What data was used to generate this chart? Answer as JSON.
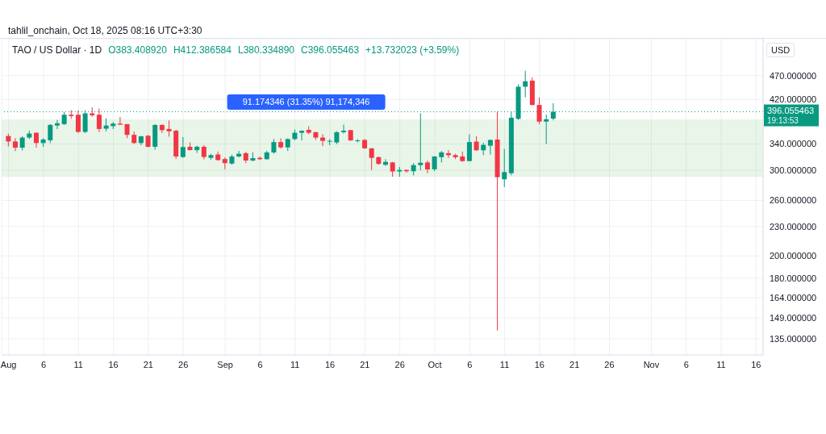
{
  "chart_data": {
    "type": "candlestick",
    "title": "TAO / US Dollar · 1D",
    "ylabel": "USD",
    "annotations": [
      "tahlil_onchain, Oct 18, 2025 08:16 UTC+3:30",
      "O383.408920",
      "H412.386584",
      "L380.334890",
      "C396.055463",
      "+13.732023 (+3.59%)",
      "19:13:53"
    ],
    "x": [
      "2025-08-01",
      "2025-08-02",
      "2025-08-03",
      "2025-08-04",
      "2025-08-05",
      "2025-08-06",
      "2025-08-07",
      "2025-08-08",
      "2025-08-09",
      "2025-08-10",
      "2025-08-11",
      "2025-08-12",
      "2025-08-13",
      "2025-08-14",
      "2025-08-15",
      "2025-08-16",
      "2025-08-17",
      "2025-08-18",
      "2025-08-19",
      "2025-08-20",
      "2025-08-21",
      "2025-08-22",
      "2025-08-23",
      "2025-08-24",
      "2025-08-25",
      "2025-08-26",
      "2025-08-27",
      "2025-08-28",
      "2025-08-29",
      "2025-08-30",
      "2025-08-31",
      "2025-09-01",
      "2025-09-02",
      "2025-09-03",
      "2025-09-04",
      "2025-09-05",
      "2025-09-06",
      "2025-09-07",
      "2025-09-08",
      "2025-09-09",
      "2025-09-10",
      "2025-09-11",
      "2025-09-12",
      "2025-09-13",
      "2025-09-14",
      "2025-09-15",
      "2025-09-16",
      "2025-09-17",
      "2025-09-18",
      "2025-09-19",
      "2025-09-20",
      "2025-09-21",
      "2025-09-22",
      "2025-09-23",
      "2025-09-24",
      "2025-09-25",
      "2025-09-26",
      "2025-09-27",
      "2025-09-28",
      "2025-09-29",
      "2025-09-30",
      "2025-10-01",
      "2025-10-02",
      "2025-10-03",
      "2025-10-04",
      "2025-10-05",
      "2025-10-06",
      "2025-10-07",
      "2025-10-08",
      "2025-10-09",
      "2025-10-10",
      "2025-10-11",
      "2025-10-12",
      "2025-10-13",
      "2025-10-14",
      "2025-10-15",
      "2025-10-16",
      "2025-10-17",
      "2025-10-18"
    ],
    "ohlc": [
      [
        353,
        357,
        336,
        344
      ],
      [
        344,
        349.5,
        328.7,
        334
      ],
      [
        334,
        352.6,
        329.7,
        350.4
      ],
      [
        350.4,
        362,
        348,
        357.2
      ],
      [
        358.5,
        359,
        334,
        341.5
      ],
      [
        341.5,
        349.5,
        335.4,
        347.2
      ],
      [
        346,
        373.5,
        341.5,
        372.2
      ],
      [
        371,
        381,
        364.8,
        375
      ],
      [
        373.5,
        395.7,
        372,
        390.5
      ],
      [
        390.5,
        399,
        383,
        388
      ],
      [
        390.5,
        399,
        358,
        360
      ],
      [
        360,
        399,
        358,
        393
      ],
      [
        393,
        404.5,
        386.6,
        389.5
      ],
      [
        390.5,
        402.3,
        359.5,
        365
      ],
      [
        365.5,
        384,
        361,
        371
      ],
      [
        370,
        377,
        365,
        374.5
      ],
      [
        374.5,
        386.6,
        372,
        372.6
      ],
      [
        373.5,
        373.5,
        349.5,
        355
      ],
      [
        355,
        360.5,
        340,
        341.5
      ],
      [
        341.5,
        353,
        338,
        352.6
      ],
      [
        353.4,
        355,
        334.6,
        335.5
      ],
      [
        335.5,
        373.5,
        330.8,
        372
      ],
      [
        372,
        373.5,
        358,
        363
      ],
      [
        365,
        380,
        352,
        361
      ],
      [
        362,
        363.5,
        316.5,
        320.4
      ],
      [
        319.6,
        351.3,
        318.3,
        335
      ],
      [
        335.4,
        342.4,
        329.8,
        330.2
      ],
      [
        330.2,
        337,
        325.8,
        335.5
      ],
      [
        335.5,
        338,
        316,
        319.6
      ],
      [
        318.3,
        324.5,
        315.5,
        322.4
      ],
      [
        323.4,
        328,
        314,
        315
      ],
      [
        316.5,
        319,
        301.5,
        310.5
      ],
      [
        309.8,
        323.2,
        308,
        320.4
      ],
      [
        320.4,
        329,
        319,
        324.5
      ],
      [
        325.4,
        327.5,
        310.5,
        314.3
      ],
      [
        314.3,
        326.8,
        313,
        317.9
      ],
      [
        318.3,
        320.4,
        315,
        316.3
      ],
      [
        316.3,
        329,
        315.5,
        326.6
      ],
      [
        326.6,
        348,
        324.5,
        343
      ],
      [
        343,
        349,
        332.5,
        334.5
      ],
      [
        334.5,
        349,
        328.8,
        348
      ],
      [
        348,
        364,
        345.8,
        358.5
      ],
      [
        358.5,
        362.5,
        345.8,
        362
      ],
      [
        363.5,
        369.7,
        356,
        358.5
      ],
      [
        359.5,
        360,
        346.5,
        350.4
      ],
      [
        350.4,
        356,
        336.5,
        345
      ],
      [
        343.7,
        348,
        338,
        345
      ],
      [
        342.4,
        361,
        339.7,
        359.5
      ],
      [
        359.5,
        372.6,
        357.2,
        362
      ],
      [
        363,
        363.5,
        345,
        345.8
      ],
      [
        345,
        348,
        342.4,
        345.8
      ],
      [
        346.5,
        348,
        332.4,
        333
      ],
      [
        333,
        333.5,
        300.5,
        318.3
      ],
      [
        319.3,
        320.4,
        308,
        309.3
      ],
      [
        308,
        316.3,
        306.3,
        312.3
      ],
      [
        311.4,
        312.3,
        291,
        298.4
      ],
      [
        298.4,
        305,
        291,
        300.5
      ],
      [
        300.5,
        301.3,
        296.7,
        298.7
      ],
      [
        298.7,
        310.5,
        293,
        307.5
      ],
      [
        307.5,
        393,
        300,
        311
      ],
      [
        311.4,
        314.3,
        296,
        301.3
      ],
      [
        301.5,
        321,
        299,
        320.4
      ],
      [
        319.3,
        329,
        311.5,
        326.7
      ],
      [
        325.4,
        330,
        318.3,
        322.4
      ],
      [
        322.4,
        324.5,
        316.5,
        319.3
      ],
      [
        320.4,
        328,
        312.3,
        313.5
      ],
      [
        313.5,
        356,
        313,
        343
      ],
      [
        343.7,
        352.6,
        329,
        330
      ],
      [
        330,
        342,
        322.4,
        338.5
      ],
      [
        337.2,
        347,
        323.4,
        346.5
      ],
      [
        347.2,
        396,
        140.4,
        290.4
      ],
      [
        287.5,
        332,
        277,
        297.5
      ],
      [
        296,
        396,
        293,
        385
      ],
      [
        383,
        451,
        381,
        446
      ],
      [
        446,
        481,
        424,
        457.7
      ],
      [
        459,
        466,
        408.5,
        409
      ],
      [
        409,
        424,
        373.5,
        378
      ],
      [
        378,
        391,
        340,
        382.3
      ],
      [
        383.40892,
        412.386584,
        380.33489,
        396.055463
      ]
    ],
    "colors": [
      "#f23645",
      "#f23645",
      "#089981",
      "#089981",
      "#f23645",
      "#089981",
      "#089981",
      "#089981",
      "#089981",
      "#f23645",
      "#f23645",
      "#089981",
      "#f23645",
      "#f23645",
      "#089981",
      "#089981",
      "#f23645",
      "#f23645",
      "#f23645",
      "#089981",
      "#f23645",
      "#089981",
      "#f23645",
      "#f23645",
      "#f23645",
      "#089981",
      "#f23645",
      "#089981",
      "#f23645",
      "#089981",
      "#f23645",
      "#f23645",
      "#089981",
      "#089981",
      "#f23645",
      "#089981",
      "#f23645",
      "#089981",
      "#089981",
      "#f23645",
      "#089981",
      "#089981",
      "#089981",
      "#f23645",
      "#f23645",
      "#f23645",
      "#089981",
      "#089981",
      "#089981",
      "#f23645",
      "#089981",
      "#f23645",
      "#f23645",
      "#f23645",
      "#089981",
      "#f23645",
      "#089981",
      "#f23645",
      "#089981",
      "#089981",
      "#f23645",
      "#089981",
      "#089981",
      "#f23645",
      "#f23645",
      "#f23645",
      "#089981",
      "#f23645",
      "#089981",
      "#089981",
      "#f23645",
      "#089981",
      "#089981",
      "#089981",
      "#089981",
      "#f23645",
      "#f23645",
      "#089981",
      "#089981"
    ],
    "xlim": [
      "2025-07-31",
      "2025-11-17"
    ],
    "xticks": [
      {
        "value": "2025-08-01",
        "label": "Aug"
      },
      {
        "value": "2025-08-06",
        "label": "6"
      },
      {
        "value": "2025-08-11",
        "label": "11"
      },
      {
        "value": "2025-08-16",
        "label": "16"
      },
      {
        "value": "2025-08-21",
        "label": "21"
      },
      {
        "value": "2025-08-26",
        "label": "26"
      },
      {
        "value": "2025-09-01",
        "label": "Sep"
      },
      {
        "value": "2025-09-06",
        "label": "6"
      },
      {
        "value": "2025-09-11",
        "label": "11"
      },
      {
        "value": "2025-09-16",
        "label": "16"
      },
      {
        "value": "2025-09-21",
        "label": "21"
      },
      {
        "value": "2025-09-26",
        "label": "26"
      },
      {
        "value": "2025-10-01",
        "label": "Oct"
      },
      {
        "value": "2025-10-06",
        "label": "6"
      },
      {
        "value": "2025-10-11",
        "label": "11"
      },
      {
        "value": "2025-10-16",
        "label": "16"
      },
      {
        "value": "2025-10-21",
        "label": "21"
      },
      {
        "value": "2025-10-26",
        "label": "26"
      },
      {
        "value": "2025-11-01",
        "label": "Nov"
      },
      {
        "value": "2025-11-06",
        "label": "6"
      },
      {
        "value": "2025-11-11",
        "label": "11"
      },
      {
        "value": "2025-11-16",
        "label": "16"
      }
    ],
    "ylim": [
      125,
      560
    ],
    "yticks": [
      {
        "value": 135,
        "label": "135.000000"
      },
      {
        "value": 149,
        "label": "149.000000"
      },
      {
        "value": 164,
        "label": "164.000000"
      },
      {
        "value": 180,
        "label": "180.000000"
      },
      {
        "value": 200,
        "label": "200.000000"
      },
      {
        "value": 230,
        "label": "230.000000"
      },
      {
        "value": 260,
        "label": "260.000000"
      },
      {
        "value": 300,
        "label": "300.000000"
      },
      {
        "value": 340,
        "label": "340.000000"
      },
      {
        "value": 420,
        "label": "420.000000"
      },
      {
        "value": 470,
        "label": "470.000000"
      }
    ],
    "log": true,
    "grid": true,
    "ref_lines": [
      {
        "axis": "y",
        "value": 396.055463,
        "label": "396.055463",
        "color": "#089981",
        "line_style": "dotted"
      }
    ],
    "bands": [
      {
        "axis": "y",
        "from": 290.83,
        "to": 382.0,
        "label": "91.174346 (31.35%) 91,174,346",
        "color": "#4caf50"
      }
    ]
  }
}
